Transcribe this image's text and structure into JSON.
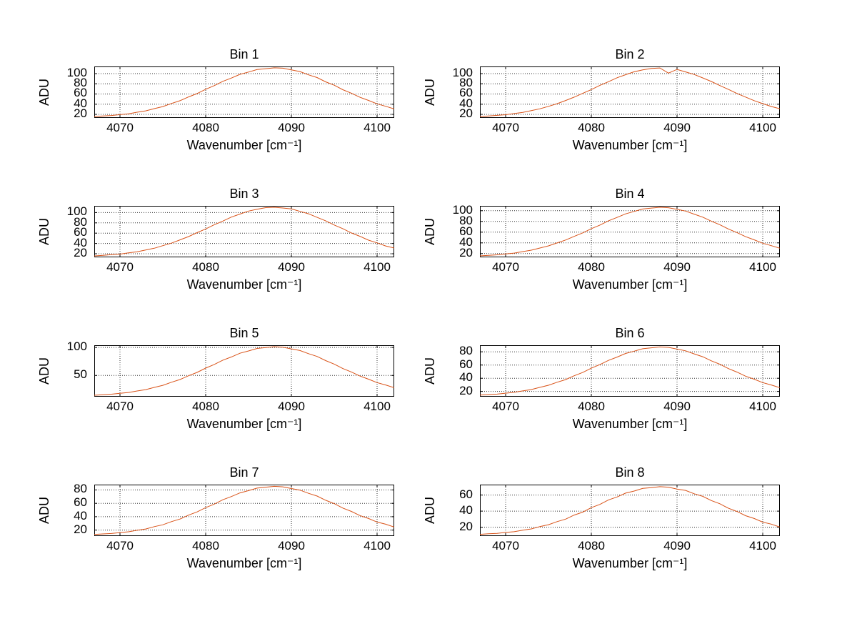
{
  "figure": {
    "background": "#ffffff",
    "line_color": "#d95319",
    "grid_color": "#333333",
    "axis_color": "#000000"
  },
  "chart_data": {
    "type": "line",
    "xlabel": "Wavenumber [cm⁻¹]",
    "ylabel": "ADU",
    "xlim": [
      4067,
      4102
    ],
    "xticks": [
      4070,
      4080,
      4090,
      4100
    ],
    "grid": "dotted",
    "legend": "none",
    "x": [
      4067,
      4068,
      4069,
      4070,
      4071,
      4072,
      4073,
      4074,
      4075,
      4076,
      4077,
      4078,
      4079,
      4080,
      4081,
      4082,
      4083,
      4084,
      4085,
      4086,
      4087,
      4088,
      4089,
      4090,
      4091,
      4092,
      4093,
      4094,
      4095,
      4096,
      4097,
      4098,
      4099,
      4100,
      4101,
      4102
    ],
    "subplots": [
      {
        "title": "Bin 1",
        "ylim": [
          13,
          114
        ],
        "yticks": [
          20,
          40,
          60,
          80,
          100
        ],
        "values": [
          15.8,
          16.9,
          17.8,
          19.5,
          21.2,
          24.2,
          26.9,
          31.2,
          35.3,
          41.3,
          46.8,
          54.2,
          60.9,
          69.3,
          76.4,
          84.8,
          91.3,
          98.5,
          103.1,
          108.0,
          109.7,
          111.3,
          110.6,
          107.2,
          104.0,
          97.6,
          92.2,
          83.9,
          77.2,
          68.4,
          61.6,
          53.5,
          47.4,
          40.7,
          35.8,
          30.7
        ]
      },
      {
        "title": "Bin 2",
        "ylim": [
          13,
          114
        ],
        "yticks": [
          20,
          40,
          60,
          80,
          100
        ],
        "values": [
          15.7,
          16.8,
          18.0,
          19.3,
          21.5,
          23.9,
          27.3,
          30.9,
          35.7,
          40.9,
          47.2,
          53.8,
          61.3,
          68.7,
          76.9,
          84.1,
          91.9,
          97.9,
          103.6,
          107.4,
          110.2,
          111.0,
          100.9,
          108.3,
          103.3,
          98.3,
          91.5,
          84.5,
          76.6,
          69.0,
          61.0,
          54.0,
          47.0,
          41.0,
          35.5,
          31.0
        ]
      },
      {
        "title": "Bin 3",
        "ylim": [
          13,
          113
        ],
        "yticks": [
          20,
          40,
          60,
          80,
          100
        ],
        "values": [
          15.7,
          16.9,
          18.1,
          19.2,
          21.6,
          23.7,
          27.2,
          30.6,
          35.6,
          40.5,
          46.9,
          53.3,
          60.9,
          68.1,
          76.4,
          83.4,
          91.2,
          97.0,
          102.9,
          106.4,
          109.5,
          110.2,
          108.9,
          107.0,
          102.3,
          97.6,
          90.6,
          84.0,
          75.8,
          68.7,
          60.4,
          53.8,
          46.4,
          41.0,
          35.1,
          31.1
        ]
      },
      {
        "title": "Bin 4",
        "ylim": [
          13,
          109
        ],
        "yticks": [
          20,
          40,
          60,
          80,
          100
        ],
        "values": [
          15.7,
          16.7,
          17.6,
          19.3,
          20.9,
          23.7,
          26.3,
          30.3,
          34.3,
          39.8,
          45.2,
          52.1,
          58.6,
          66.4,
          73.2,
          81.1,
          87.4,
          94.1,
          98.6,
          103.1,
          104.9,
          106.3,
          105.5,
          102.5,
          99.2,
          93.5,
          88.0,
          80.5,
          73.8,
          65.8,
          59.1,
          51.5,
          45.7,
          39.3,
          34.8,
          29.9
        ]
      },
      {
        "title": "Bin 5",
        "ylim": [
          12,
          104
        ],
        "yticks": [
          50,
          100
        ],
        "values": [
          14.6,
          15.6,
          16.5,
          18.0,
          19.5,
          22.2,
          24.7,
          28.6,
          32.3,
          37.8,
          42.7,
          49.5,
          55.5,
          63.1,
          69.6,
          77.3,
          83.1,
          89.7,
          93.8,
          98.3,
          99.9,
          101.4,
          100.6,
          97.5,
          94.6,
          88.9,
          83.9,
          76.5,
          70.3,
          62.4,
          56.2,
          48.9,
          43.3,
          37.2,
          32.9,
          28.1
        ]
      },
      {
        "title": "Bin 6",
        "ylim": [
          12,
          90
        ],
        "yticks": [
          20,
          40,
          60,
          80
        ],
        "values": [
          14.4,
          15.2,
          15.9,
          17.3,
          18.6,
          20.8,
          22.8,
          26.2,
          29.3,
          33.9,
          37.9,
          43.7,
          48.7,
          55.2,
          60.6,
          67.0,
          72.0,
          77.5,
          81.0,
          84.7,
          86.1,
          87.4,
          86.7,
          84.1,
          81.6,
          76.9,
          72.6,
          66.4,
          61.2,
          54.6,
          49.3,
          43.1,
          38.5,
          33.3,
          29.8,
          25.7
        ]
      },
      {
        "title": "Bin 7",
        "ylim": [
          11,
          88
        ],
        "yticks": [
          20,
          40,
          60,
          80
        ],
        "values": [
          13.3,
          14.2,
          14.8,
          16.2,
          17.4,
          19.7,
          21.6,
          25.1,
          27.9,
          32.6,
          36.5,
          42.3,
          47.1,
          53.6,
          58.8,
          65.3,
          70.1,
          75.6,
          79.0,
          82.8,
          84.1,
          85.4,
          84.7,
          82.1,
          79.8,
          74.9,
          70.9,
          64.6,
          59.6,
          52.9,
          47.9,
          41.7,
          37.3,
          32.0,
          28.7,
          24.5
        ]
      },
      {
        "title": "Bin 8",
        "ylim": [
          9,
          73
        ],
        "yticks": [
          20,
          40,
          60
        ],
        "values": [
          11.1,
          11.8,
          12.3,
          13.5,
          14.4,
          16.4,
          17.9,
          20.8,
          23.1,
          27.0,
          30.1,
          35.1,
          38.8,
          44.4,
          48.4,
          54.0,
          57.6,
          62.4,
          65.0,
          68.3,
          69.2,
          70.4,
          69.8,
          67.5,
          65.8,
          61.6,
          58.4,
          53.2,
          49.2,
          43.6,
          39.6,
          34.3,
          30.9,
          26.3,
          23.8,
          20.2
        ]
      }
    ]
  }
}
